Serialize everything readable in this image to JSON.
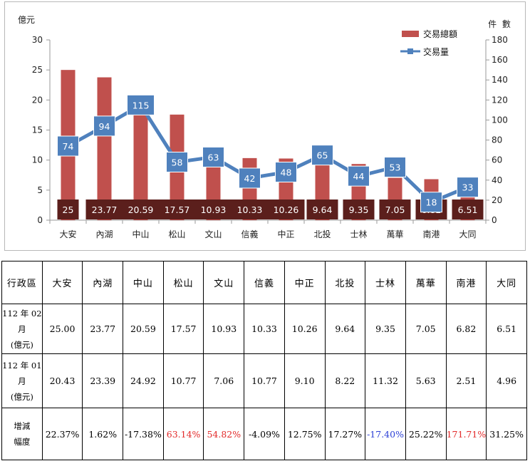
{
  "chart_data": {
    "type": "bar",
    "categories": [
      "大安",
      "內湖",
      "中山",
      "松山",
      "文山",
      "信義",
      "中正",
      "北投",
      "士林",
      "萬華",
      "南港",
      "大同"
    ],
    "left_axis_unit": "億元",
    "right_axis_unit": "件 數",
    "left_ticks": [
      "0",
      "5",
      "10",
      "15",
      "20",
      "25",
      "30"
    ],
    "right_ticks": [
      "0",
      "20",
      "40",
      "60",
      "80",
      "100",
      "120",
      "140",
      "160",
      "180"
    ],
    "ylim": [
      0,
      30
    ],
    "y2lim": [
      0,
      180
    ],
    "series": [
      {
        "name": "交易總額",
        "kind": "bar",
        "axis": "left",
        "color": "#c0504d",
        "values": [
          25,
          23.77,
          20.59,
          17.57,
          10.93,
          10.33,
          10.26,
          9.64,
          9.35,
          7.05,
          6.82,
          6.51
        ],
        "labels": [
          "25",
          "23.77",
          "20.59",
          "17.57",
          "10.93",
          "10.33",
          "10.26",
          "9.64",
          "9.35",
          "7.05",
          "6.82",
          "6.51"
        ]
      },
      {
        "name": "交易量",
        "kind": "line",
        "axis": "right",
        "color": "#4f81bd",
        "values": [
          74,
          94,
          115,
          58,
          63,
          42,
          48,
          65,
          44,
          53,
          18,
          33
        ],
        "labels": [
          "74",
          "94",
          "115",
          "58",
          "63",
          "42",
          "48",
          "65",
          "44",
          "53",
          "18",
          "33"
        ]
      }
    ],
    "legend_position": "top-right",
    "grid": false
  },
  "table": {
    "header": [
      "行政區",
      "大安",
      "內湖",
      "中山",
      "松山",
      "文山",
      "信義",
      "中正",
      "北投",
      "士林",
      "萬華",
      "南港",
      "大同"
    ],
    "rows": [
      {
        "label_line1": "112 年 02 月",
        "label_line2": "(億元)",
        "cells": [
          {
            "text": "25.00",
            "color": "black"
          },
          {
            "text": "23.77",
            "color": "black"
          },
          {
            "text": "20.59",
            "color": "black"
          },
          {
            "text": "17.57",
            "color": "black"
          },
          {
            "text": "10.93",
            "color": "black"
          },
          {
            "text": "10.33",
            "color": "black"
          },
          {
            "text": "10.26",
            "color": "black"
          },
          {
            "text": "9.64",
            "color": "black"
          },
          {
            "text": "9.35",
            "color": "black"
          },
          {
            "text": "7.05",
            "color": "black"
          },
          {
            "text": "6.82",
            "color": "black"
          },
          {
            "text": "6.51",
            "color": "black"
          }
        ]
      },
      {
        "label_line1": "112 年 01 月",
        "label_line2": "(億元)",
        "cells": [
          {
            "text": "20.43",
            "color": "black"
          },
          {
            "text": "23.39",
            "color": "black"
          },
          {
            "text": "24.92",
            "color": "black"
          },
          {
            "text": "10.77",
            "color": "black"
          },
          {
            "text": "7.06",
            "color": "black"
          },
          {
            "text": "10.77",
            "color": "black"
          },
          {
            "text": "9.10",
            "color": "black"
          },
          {
            "text": "8.22",
            "color": "black"
          },
          {
            "text": "11.32",
            "color": "black"
          },
          {
            "text": "5.63",
            "color": "black"
          },
          {
            "text": "2.51",
            "color": "black"
          },
          {
            "text": "4.96",
            "color": "black"
          }
        ]
      },
      {
        "label_line1": "增減",
        "label_line2": "幅度",
        "cells": [
          {
            "text": "22.37%",
            "color": "black"
          },
          {
            "text": "1.62%",
            "color": "black"
          },
          {
            "text": "-17.38%",
            "color": "black"
          },
          {
            "text": "63.14%",
            "color": "red"
          },
          {
            "text": "54.82%",
            "color": "red"
          },
          {
            "text": "-4.09%",
            "color": "black"
          },
          {
            "text": "12.75%",
            "color": "black"
          },
          {
            "text": "17.27%",
            "color": "black"
          },
          {
            "text": "-17.40%",
            "color": "blue"
          },
          {
            "text": "25.22%",
            "color": "black"
          },
          {
            "text": "171.71%",
            "color": "red"
          },
          {
            "text": "31.25%",
            "color": "black"
          }
        ]
      }
    ]
  }
}
